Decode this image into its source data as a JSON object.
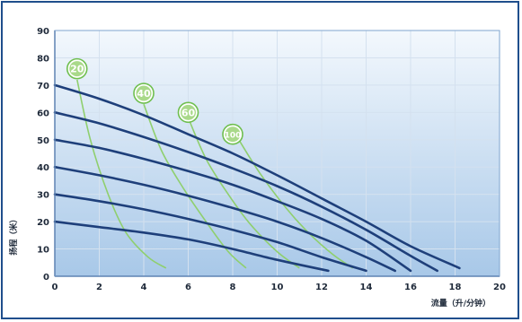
{
  "chart_data": {
    "type": "line",
    "title": "",
    "xlabel": "流量（升/分钟）",
    "ylabel": "扬程（米）",
    "xlim": [
      0,
      20
    ],
    "ylim": [
      0,
      90
    ],
    "xticks": [
      0,
      2,
      4,
      6,
      8,
      10,
      12,
      14,
      16,
      18,
      20
    ],
    "yticks": [
      0,
      10,
      20,
      30,
      40,
      50,
      60,
      70,
      80,
      90
    ],
    "grid": true,
    "colors": {
      "pump_curve": "#1e3f7a",
      "iso_curve": "#8fcf6e",
      "badge_fill": "#a9d98a",
      "badge_ring": "#6fbf4f",
      "plot_top": "#f3f8fd",
      "plot_bottom": "#a8c8e8"
    },
    "series": [
      {
        "kind": "pump",
        "x": [
          0,
          2,
          4,
          6,
          8,
          10,
          12.3
        ],
        "y": [
          20,
          18,
          16,
          13.5,
          10,
          6,
          2
        ]
      },
      {
        "kind": "pump",
        "x": [
          0,
          2,
          4,
          6,
          8,
          10,
          12,
          14
        ],
        "y": [
          30,
          27.5,
          24.5,
          21,
          17,
          12.5,
          7,
          2
        ]
      },
      {
        "kind": "pump",
        "x": [
          0,
          2,
          4,
          6,
          8,
          10,
          12,
          14,
          15.3
        ],
        "y": [
          40,
          37,
          33.5,
          29.5,
          25,
          20,
          14,
          7,
          2
        ]
      },
      {
        "kind": "pump",
        "x": [
          0,
          2,
          4,
          6,
          8,
          10,
          12,
          14,
          16
        ],
        "y": [
          50,
          47,
          43,
          38.5,
          33.5,
          27.5,
          21,
          13,
          2
        ]
      },
      {
        "kind": "pump",
        "x": [
          0,
          2,
          4,
          6,
          8,
          10,
          12,
          14,
          16,
          17.2
        ],
        "y": [
          60,
          56,
          51,
          45.5,
          39.5,
          33,
          25.5,
          17,
          7.5,
          2
        ]
      },
      {
        "kind": "pump",
        "x": [
          0,
          2,
          4,
          6,
          8,
          10,
          12,
          14,
          16,
          18.2
        ],
        "y": [
          70,
          65,
          59,
          52,
          45,
          37,
          28.5,
          20,
          11,
          3
        ]
      }
    ],
    "iso_lines": [
      {
        "label": "20",
        "x": [
          1.0,
          1.6,
          2.4,
          3.2,
          4.2,
          5.0
        ],
        "y": [
          72,
          50,
          30,
          16,
          7,
          3
        ],
        "badge": [
          1,
          76
        ]
      },
      {
        "label": "40",
        "x": [
          4.0,
          4.8,
          5.8,
          6.8,
          7.8,
          8.6
        ],
        "y": [
          63,
          46,
          32,
          20,
          9,
          3
        ],
        "badge": [
          4,
          67
        ]
      },
      {
        "label": "60",
        "x": [
          6.0,
          6.8,
          7.8,
          8.8,
          10.0,
          11.0
        ],
        "y": [
          58,
          43,
          30,
          19,
          9,
          3
        ],
        "badge": [
          6,
          60
        ]
      },
      {
        "label": "100",
        "x": [
          8.2,
          9.2,
          10.4,
          11.4,
          12.5,
          13.4
        ],
        "y": [
          51,
          38,
          25,
          16,
          8,
          3
        ],
        "badge": [
          8,
          52
        ]
      }
    ]
  }
}
